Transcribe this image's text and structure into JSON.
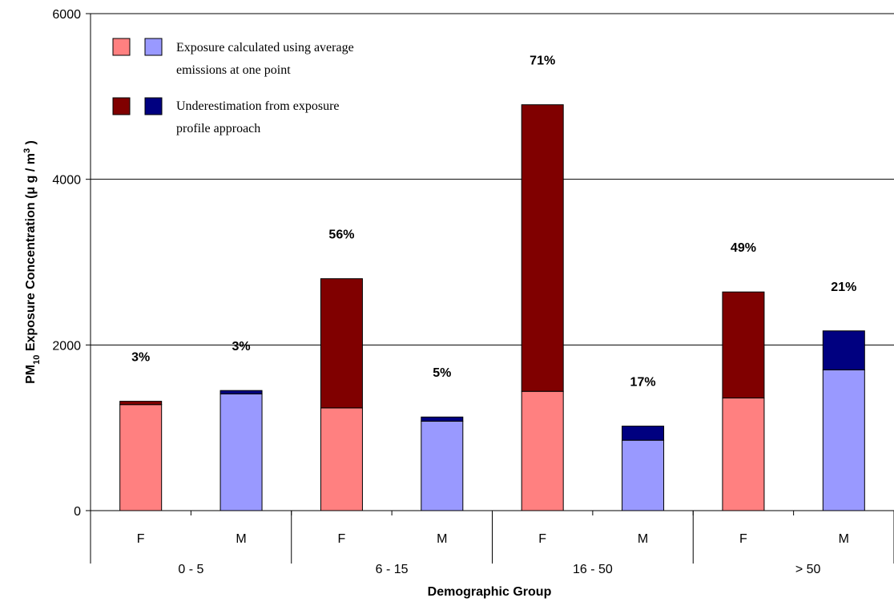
{
  "chart_data": {
    "type": "bar",
    "stacked": true,
    "title": "",
    "xlabel": "Demographic Group",
    "ylabel_main": "PM",
    "ylabel_sub": "10",
    "ylabel_rest": " Exposure Concentration (",
    "ylabel_mu": "μ",
    "ylabel_unit": " g / m",
    "ylabel_sup": "3",
    "ylabel_end": " )",
    "ylim": [
      0,
      6000
    ],
    "yticks": [
      "0",
      "2000",
      "4000",
      "6000"
    ],
    "grid": true,
    "groups": [
      "0 - 5",
      "6 - 15",
      "16 - 50",
      "> 50"
    ],
    "categories": [
      "F",
      "M",
      "F",
      "M",
      "F",
      "M",
      "F",
      "M"
    ],
    "series": [
      {
        "name": "Exposure calculated using average emissions at one point",
        "values": [
          1280,
          1410,
          1240,
          1080,
          1440,
          850,
          1360,
          1700
        ]
      },
      {
        "name": "Underestimation from exposure profile approach",
        "values": [
          40,
          40,
          1560,
          50,
          3460,
          170,
          1280,
          470
        ]
      }
    ],
    "data_labels": [
      "3%",
      "3%",
      "56%",
      "5%",
      "71%",
      "17%",
      "49%",
      "21%"
    ],
    "legend": {
      "placement": "top-left",
      "entries": [
        {
          "line1": "Exposure calculated using average",
          "line2": "emissions at one point"
        },
        {
          "line1": "Underestimation from exposure",
          "line2": "profile approach"
        }
      ]
    },
    "colors": {
      "female_base": "#ff8080",
      "male_base": "#9999ff",
      "female_under": "#800000",
      "male_under": "#000080",
      "grid": "#000000",
      "outline": "#000000"
    }
  }
}
